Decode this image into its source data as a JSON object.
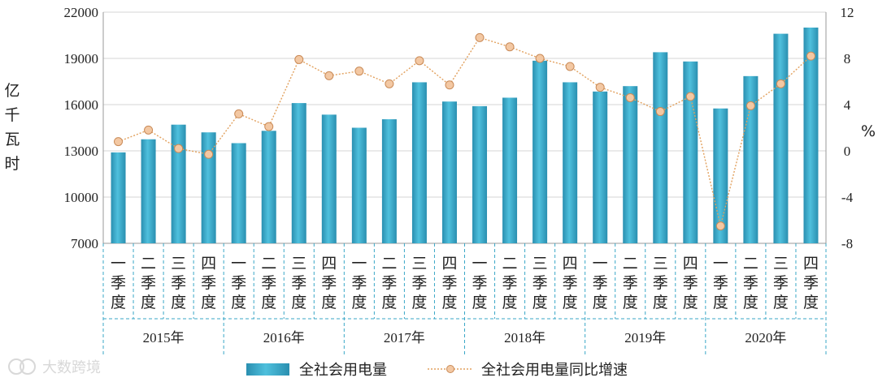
{
  "chart_data": {
    "type": "bar",
    "title": "",
    "quarter_labels": [
      "一季度",
      "二季度",
      "三季度",
      "四季度"
    ],
    "years": [
      "2015年",
      "2016年",
      "2017年",
      "2018年",
      "2019年",
      "2020年"
    ],
    "y_left": {
      "label": "亿千瓦时",
      "ticks": [
        "22000",
        "19000",
        "16000",
        "13000",
        "10000",
        "7000"
      ],
      "lim": [
        7000,
        22000
      ]
    },
    "y_right": {
      "label": "%",
      "ticks": [
        "12",
        "8",
        "4",
        "0",
        "-4",
        "-8"
      ],
      "lim": [
        -8,
        12
      ]
    },
    "series": [
      {
        "name": "全社会用电量",
        "type": "bar",
        "color": "#3aa7c7",
        "values": [
          12900,
          13750,
          14700,
          14200,
          13500,
          14300,
          16100,
          15350,
          14500,
          15050,
          17450,
          16200,
          15900,
          16450,
          18850,
          17450,
          16850,
          17200,
          19400,
          18800,
          15750,
          17850,
          20600,
          21000
        ]
      },
      {
        "name": "全社会用电量同比增速",
        "type": "line",
        "color": "#e2a15e",
        "values": [
          0.8,
          1.8,
          0.2,
          -0.3,
          3.2,
          2.1,
          7.9,
          6.5,
          6.9,
          5.8,
          7.8,
          5.7,
          9.8,
          9.0,
          8.0,
          7.3,
          5.5,
          4.6,
          3.4,
          4.7,
          -6.5,
          3.9,
          5.8,
          8.2
        ]
      }
    ],
    "grid": true,
    "legend": "bottom"
  },
  "watermark": "大数跨境"
}
